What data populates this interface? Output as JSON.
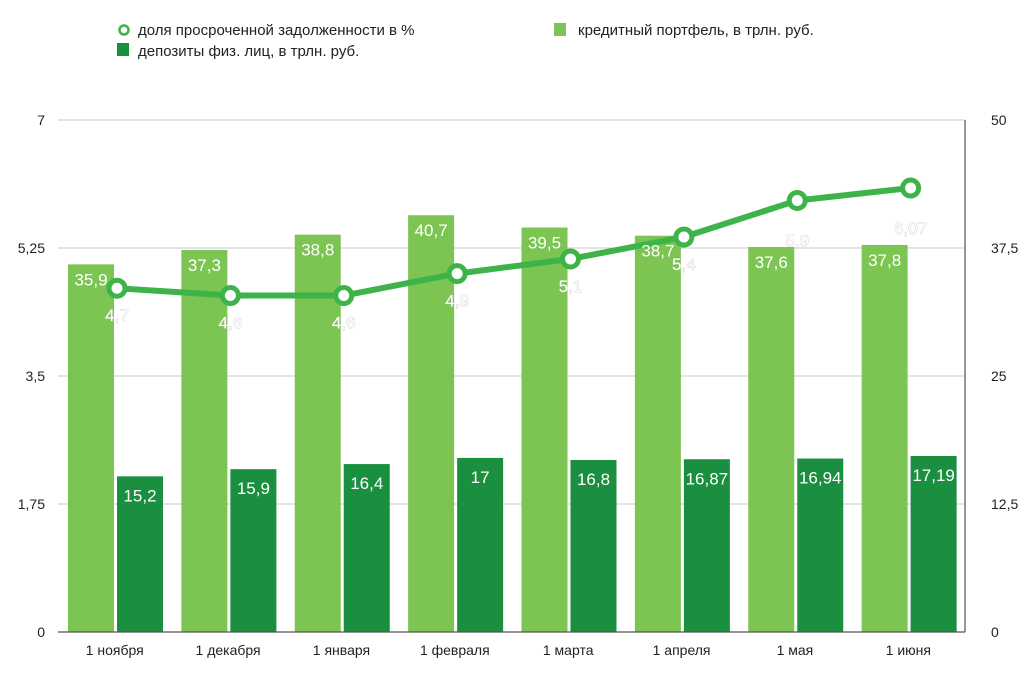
{
  "colors": {
    "light_bar": "#7cc552",
    "dark_bar": "#1a8f3f",
    "line": "#3db34a",
    "grid": "#c8c8c8",
    "axis": "#555555"
  },
  "legend": {
    "line": "доля просроченной задолженности в %",
    "light": "кредитный портфель, в трлн. руб.",
    "dark": "депозиты физ. лиц, в трлн. руб."
  },
  "chart_data": {
    "type": "bar",
    "categories": [
      "1 ноября",
      "1 декабря",
      "1 января",
      "1 февраля",
      "1 марта",
      "1 апреля",
      "1 мая",
      "1 июня"
    ],
    "left_axis": {
      "ylim": [
        0,
        7
      ],
      "ticks": [
        "0",
        "1,75",
        "3,5",
        "5,25",
        "7"
      ]
    },
    "right_axis": {
      "ylim": [
        0,
        50
      ],
      "ticks": [
        "0",
        "12,5",
        "25",
        "37,5",
        "50"
      ]
    },
    "grid": true,
    "legend_position": "top",
    "series": [
      {
        "name": "кредитный портфель, в трлн. руб.",
        "kind": "bar",
        "axis": "right",
        "values": [
          35.9,
          37.3,
          38.8,
          40.7,
          39.5,
          38.7,
          37.6,
          37.8
        ],
        "labels": [
          "35,9",
          "37,3",
          "38,8",
          "40,7",
          "39,5",
          "38,7",
          "37,6",
          "37,8"
        ]
      },
      {
        "name": "депозиты физ. лиц, в трлн. руб.",
        "kind": "bar",
        "axis": "right",
        "values": [
          15.2,
          15.9,
          16.4,
          17,
          16.8,
          16.87,
          16.94,
          17.19
        ],
        "labels": [
          "15,2",
          "15,9",
          "16,4",
          "17",
          "16,8",
          "16,87",
          "16,94",
          "17,19"
        ]
      },
      {
        "name": "доля просроченной задолженности в %",
        "kind": "line",
        "axis": "left",
        "values": [
          4.7,
          4.6,
          4.6,
          4.9,
          5.1,
          5.4,
          5.9,
          6.07
        ],
        "labels": [
          "4,7",
          "4,6",
          "4,6",
          "4,9",
          "5,1",
          "5,4",
          "5,9",
          "6,07"
        ]
      }
    ]
  }
}
